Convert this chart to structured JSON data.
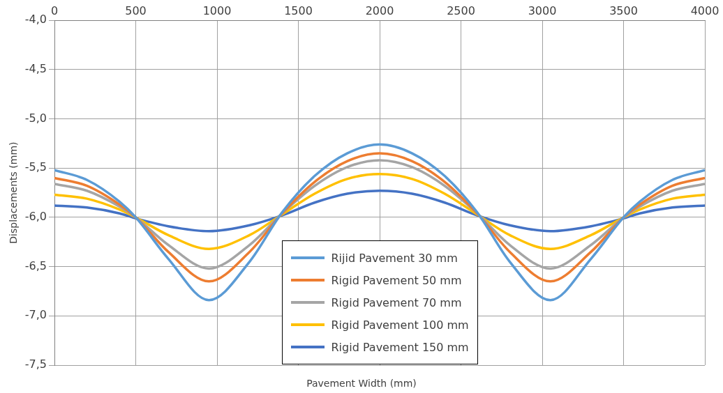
{
  "chart_data": {
    "type": "line",
    "xlabel": "Pavement Width (mm)",
    "ylabel": "Displacements (mm)",
    "xlim": [
      0,
      4000
    ],
    "xticks": [
      0,
      500,
      1000,
      1500,
      2000,
      2500,
      3000,
      3500,
      4000
    ],
    "ylim": [
      -7.5,
      -4.0
    ],
    "yticks": [
      {
        "value": -4.0,
        "label": "-4,0"
      },
      {
        "value": -4.5,
        "label": "-4,5"
      },
      {
        "value": -5.0,
        "label": "-5,0"
      },
      {
        "value": -5.5,
        "label": "-5,5"
      },
      {
        "value": -6.0,
        "label": "-6,0"
      },
      {
        "value": -6.5,
        "label": "-6,5"
      },
      {
        "value": -7.0,
        "label": "-7,0"
      },
      {
        "value": -7.5,
        "label": "-7,5"
      }
    ],
    "grid": true,
    "legend": "bottom",
    "marker": "none",
    "line_style": "solid",
    "x": [
      0,
      200,
      400,
      500,
      700,
      950,
      1200,
      1400,
      1600,
      1800,
      2000,
      2200,
      2400,
      2600,
      2800,
      3050,
      3300,
      3500,
      3600,
      3800,
      4000
    ],
    "series": [
      {
        "name": "Rijid Pavement 30 mm",
        "color": "#5b9bd5",
        "values": [
          -5.52,
          -5.62,
          -5.84,
          -6.0,
          -6.42,
          -6.84,
          -6.45,
          -5.95,
          -5.58,
          -5.35,
          -5.26,
          -5.35,
          -5.58,
          -5.95,
          -6.45,
          -6.84,
          -6.42,
          -6.0,
          -5.84,
          -5.62,
          -5.52
        ]
      },
      {
        "name": "Rigid Pavement 50 mm",
        "color": "#ed7d31",
        "values": [
          -5.6,
          -5.68,
          -5.87,
          -6.0,
          -6.35,
          -6.65,
          -6.35,
          -5.96,
          -5.64,
          -5.43,
          -5.35,
          -5.43,
          -5.64,
          -5.96,
          -6.35,
          -6.65,
          -6.35,
          -6.0,
          -5.87,
          -5.68,
          -5.6
        ]
      },
      {
        "name": "Rigid Pavement 70 mm",
        "color": "#a5a5a5",
        "values": [
          -5.66,
          -5.73,
          -5.89,
          -6.0,
          -6.28,
          -6.52,
          -6.28,
          -5.96,
          -5.68,
          -5.49,
          -5.42,
          -5.49,
          -5.68,
          -5.96,
          -6.28,
          -6.52,
          -6.28,
          -6.0,
          -5.89,
          -5.73,
          -5.66
        ]
      },
      {
        "name": "Rigid Pavement 100 mm",
        "color": "#ffc000",
        "values": [
          -5.77,
          -5.81,
          -5.92,
          -6.0,
          -6.18,
          -6.32,
          -6.18,
          -5.97,
          -5.76,
          -5.61,
          -5.56,
          -5.61,
          -5.76,
          -5.97,
          -6.18,
          -6.32,
          -6.18,
          -6.0,
          -5.92,
          -5.81,
          -5.77
        ]
      },
      {
        "name": "Rigid Pavement 150 mm",
        "color": "#4472c4",
        "values": [
          -5.88,
          -5.9,
          -5.96,
          -6.01,
          -6.09,
          -6.14,
          -6.08,
          -5.98,
          -5.85,
          -5.76,
          -5.73,
          -5.76,
          -5.85,
          -5.98,
          -6.08,
          -6.14,
          -6.09,
          -6.01,
          -5.96,
          -5.9,
          -5.88
        ]
      }
    ]
  }
}
